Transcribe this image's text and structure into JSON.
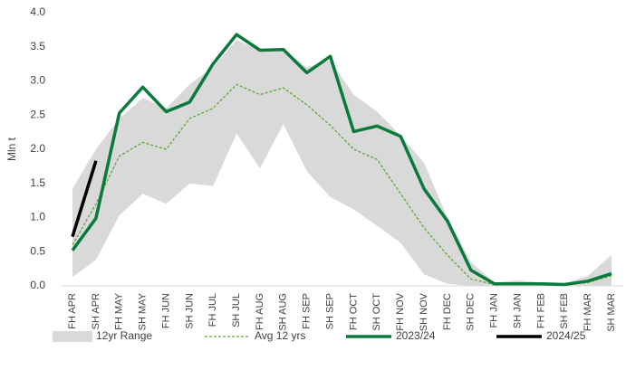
{
  "chart_data": {
    "type": "line",
    "y_label": "Mln t",
    "categories": [
      "FH APR",
      "SH APR",
      "FH MAY",
      "SH MAY",
      "FH JUN",
      "SH JUN",
      "FH JUL",
      "SH JUL",
      "FH AUG",
      "SH AUG",
      "FH SEP",
      "SH SEP",
      "FH OCT",
      "SH OCT",
      "FH NOV",
      "SH NOV",
      "FH DEC",
      "SH DEC",
      "FH JAN",
      "SH JAN",
      "FH FEB",
      "SH FEB",
      "FH MAR",
      "SH MAR"
    ],
    "ylim": [
      0,
      4
    ],
    "yticks": [
      {
        "value": 0,
        "label": "0.0"
      },
      0.5,
      {
        "value": 1,
        "label": "1.0"
      },
      1.5,
      {
        "value": 2,
        "label": "2.0"
      },
      2.5,
      {
        "value": 3,
        "label": "3.0"
      },
      3.5,
      {
        "value": 4,
        "label": "4.0"
      }
    ],
    "grid": false,
    "range": {
      "name": "12yr Range",
      "color": "#d9d9d9",
      "upper": [
        1.42,
        2.0,
        2.45,
        2.75,
        2.6,
        2.95,
        3.2,
        3.6,
        3.45,
        3.45,
        3.2,
        3.3,
        2.8,
        2.55,
        2.2,
        1.8,
        1.0,
        0.35,
        0.05,
        0.08,
        0.05,
        0.03,
        0.15,
        0.45
      ],
      "lower": [
        0.13,
        0.38,
        1.03,
        1.35,
        1.2,
        1.5,
        1.46,
        2.23,
        1.72,
        2.37,
        1.68,
        1.3,
        1.12,
        0.88,
        0.63,
        0.17,
        0.03,
        0.0,
        0.0,
        0.0,
        0.0,
        0.0,
        0.0,
        0.0
      ]
    },
    "series": [
      {
        "name": "Avg 12 yrs",
        "color": "#5aa832",
        "dashed": true,
        "width": 1.3,
        "values": [
          0.6,
          1.2,
          1.9,
          2.1,
          2.0,
          2.45,
          2.6,
          2.95,
          2.8,
          2.9,
          2.65,
          2.35,
          2.0,
          1.85,
          1.35,
          0.85,
          0.45,
          0.1,
          0.02,
          0.03,
          0.02,
          0.01,
          0.05,
          0.15
        ]
      },
      {
        "name": "2023/24",
        "color": "#0a7a3c",
        "dashed": false,
        "width": 3.5,
        "values": [
          0.52,
          0.99,
          2.53,
          2.91,
          2.55,
          2.69,
          3.25,
          3.68,
          3.45,
          3.46,
          3.12,
          3.36,
          2.26,
          2.34,
          2.19,
          1.42,
          0.95,
          0.23,
          0.03,
          0.03,
          0.03,
          0.02,
          0.07,
          0.18
        ]
      },
      {
        "name": "2024/25",
        "color": "#000000",
        "dashed": false,
        "width": 3.5,
        "values": [
          0.72,
          1.83,
          null,
          null,
          null,
          null,
          null,
          null,
          null,
          null,
          null,
          null,
          null,
          null,
          null,
          null,
          null,
          null,
          null,
          null,
          null,
          null,
          null,
          null
        ]
      }
    ]
  }
}
